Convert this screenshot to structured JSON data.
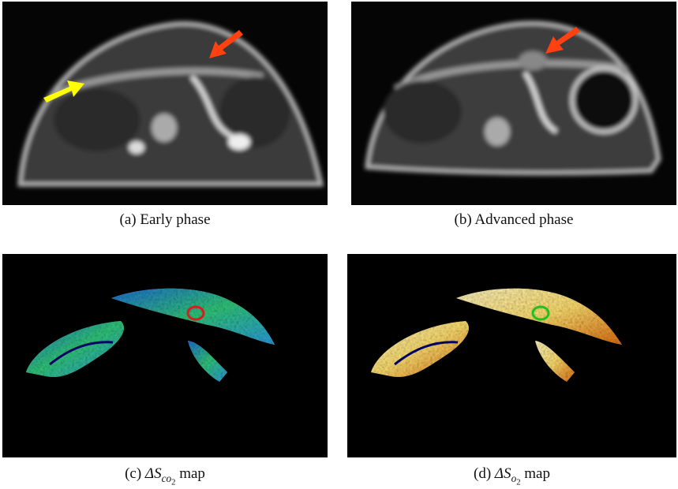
{
  "panels": [
    {
      "caption": {
        "label": "(a)",
        "text": "Early phase"
      }
    },
    {
      "caption": {
        "label": "(b)",
        "text": "Advanced phase"
      }
    },
    {
      "caption": {
        "label": "(c)",
        "math": "ΔS",
        "sub": "co",
        "subsub": "2",
        "text": "map"
      }
    },
    {
      "caption": {
        "label": "(d)",
        "math": "ΔS",
        "sub": "o",
        "subsub": "2",
        "text": "map"
      }
    }
  ]
}
